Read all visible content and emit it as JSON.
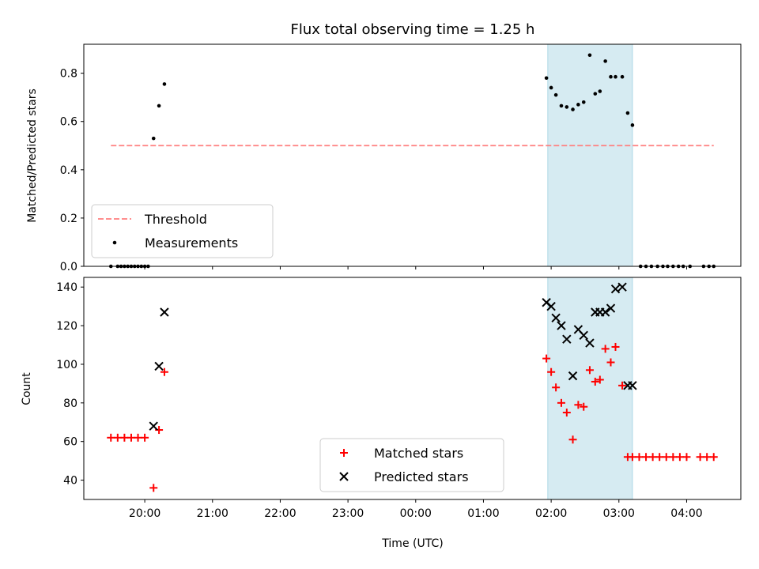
{
  "chart_data": [
    {
      "type": "scatter",
      "title": "Flux total observing time = 1.25 h",
      "xlabel": "",
      "ylabel": "Matched/Predicted stars",
      "xlim": [
        19.1,
        28.8
      ],
      "ylim": [
        0.0,
        0.92
      ],
      "yticks": [
        0.0,
        0.2,
        0.4,
        0.6,
        0.8
      ],
      "ytick_labels": [
        "0.0",
        "0.2",
        "0.4",
        "0.6",
        "0.8"
      ],
      "shaded_span": [
        25.95,
        27.2
      ],
      "legend_position": "lower left",
      "threshold": {
        "name": "Threshold",
        "value": 0.5,
        "x_range": [
          19.5,
          28.4
        ],
        "color": "#ff7f7f"
      },
      "series": [
        {
          "name": "Measurements",
          "color": "#000000",
          "x": [
            19.5,
            19.6,
            19.65,
            19.7,
            19.75,
            19.8,
            19.85,
            19.9,
            19.95,
            20.0,
            20.05,
            20.13,
            20.21,
            20.29,
            25.93,
            26.0,
            26.07,
            26.15,
            26.23,
            26.32,
            26.4,
            26.48,
            26.57,
            26.65,
            26.72,
            26.8,
            26.88,
            26.95,
            27.05,
            27.13,
            27.2,
            27.32,
            27.4,
            27.48,
            27.57,
            27.65,
            27.72,
            27.8,
            27.88,
            27.95,
            28.05,
            28.25,
            28.33,
            28.4
          ],
          "y": [
            0,
            0,
            0,
            0,
            0,
            0,
            0,
            0,
            0,
            0,
            0,
            0.53,
            0.665,
            0.755,
            0.78,
            0.74,
            0.71,
            0.665,
            0.66,
            0.65,
            0.67,
            0.68,
            0.875,
            0.715,
            0.725,
            0.85,
            0.785,
            0.785,
            0.785,
            0.635,
            0.585,
            0,
            0,
            0,
            0,
            0,
            0,
            0,
            0,
            0,
            0,
            0,
            0,
            0
          ]
        }
      ]
    },
    {
      "type": "scatter",
      "title": "",
      "xlabel": "Time (UTC)",
      "ylabel": "Count",
      "xlim": [
        19.1,
        28.8
      ],
      "ylim": [
        30,
        145
      ],
      "xticks": [
        20,
        21,
        22,
        23,
        24,
        25,
        26,
        27,
        28
      ],
      "xtick_labels": [
        "20:00",
        "21:00",
        "22:00",
        "23:00",
        "00:00",
        "01:00",
        "02:00",
        "03:00",
        "04:00"
      ],
      "yticks": [
        40,
        60,
        80,
        100,
        120,
        140
      ],
      "ytick_labels": [
        "40",
        "60",
        "80",
        "100",
        "120",
        "140"
      ],
      "shaded_span": [
        25.95,
        27.2
      ],
      "legend_position": "lower center",
      "series": [
        {
          "name": "Matched stars",
          "color": "#ff0000",
          "marker": "+",
          "x": [
            19.5,
            19.6,
            19.7,
            19.8,
            19.9,
            20.0,
            20.13,
            20.21,
            20.29,
            25.93,
            26.0,
            26.07,
            26.15,
            26.23,
            26.32,
            26.4,
            26.48,
            26.57,
            26.65,
            26.72,
            26.8,
            26.88,
            26.95,
            27.05,
            27.13,
            27.2,
            27.3,
            27.4,
            27.5,
            27.6,
            27.7,
            27.8,
            27.9,
            28.0,
            28.2,
            28.3,
            28.4
          ],
          "y": [
            62,
            62,
            62,
            62,
            62,
            62,
            36,
            66,
            96,
            103,
            96,
            88,
            80,
            75,
            61,
            79,
            78,
            97,
            91,
            92,
            108,
            101,
            109,
            89,
            52,
            52,
            52,
            52,
            52,
            52,
            52,
            52,
            52,
            52,
            52,
            52,
            52
          ]
        },
        {
          "name": "Predicted stars",
          "color": "#000000",
          "marker": "x",
          "x": [
            20.13,
            20.21,
            20.29,
            25.93,
            26.0,
            26.07,
            26.15,
            26.23,
            26.32,
            26.4,
            26.48,
            26.57,
            26.65,
            26.72,
            26.8,
            26.88,
            26.95,
            27.05,
            27.13,
            27.2
          ],
          "y": [
            68,
            99,
            127,
            132,
            130,
            124,
            120,
            113,
            94,
            118,
            115,
            111,
            127,
            127,
            127,
            129,
            139,
            140,
            89,
            89
          ]
        }
      ]
    }
  ]
}
